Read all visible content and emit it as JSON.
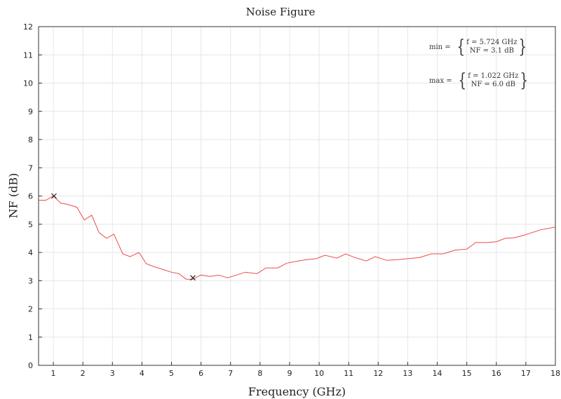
{
  "chart_data": {
    "type": "line",
    "title": "Noise Figure",
    "xlabel": "Frequency (GHz)",
    "ylabel": "NF (dB)",
    "xlim": [
      0.5,
      18
    ],
    "ylim": [
      0,
      12
    ],
    "xticks": [
      1,
      2,
      3,
      4,
      5,
      6,
      7,
      8,
      9,
      10,
      11,
      12,
      13,
      14,
      15,
      16,
      17,
      18
    ],
    "yticks": [
      0,
      1,
      2,
      3,
      4,
      5,
      6,
      7,
      8,
      9,
      10,
      11,
      12
    ],
    "grid": true,
    "series": [
      {
        "color": "#ef4a4a",
        "x": [
          0.5,
          0.75,
          1.0,
          1.25,
          1.5,
          1.8,
          2.05,
          2.3,
          2.55,
          2.8,
          3.05,
          3.35,
          3.6,
          3.9,
          4.15,
          4.4,
          4.7,
          5.0,
          5.25,
          5.5,
          5.72,
          6.0,
          6.3,
          6.6,
          6.9,
          7.2,
          7.5,
          7.9,
          8.2,
          8.6,
          8.9,
          9.3,
          9.6,
          9.9,
          10.2,
          10.6,
          10.9,
          11.2,
          11.6,
          11.9,
          12.3,
          12.7,
          13.0,
          13.4,
          13.8,
          14.2,
          14.6,
          15.0,
          15.3,
          15.7,
          16.0,
          16.3,
          16.6,
          16.9,
          17.2,
          17.5,
          18.0
        ],
        "y": [
          5.85,
          5.85,
          6.0,
          5.75,
          5.7,
          5.6,
          5.15,
          5.32,
          4.7,
          4.5,
          4.65,
          3.95,
          3.85,
          4.0,
          3.6,
          3.5,
          3.4,
          3.3,
          3.25,
          3.05,
          3.05,
          3.2,
          3.15,
          3.2,
          3.1,
          3.2,
          3.3,
          3.25,
          3.45,
          3.45,
          3.62,
          3.7,
          3.75,
          3.78,
          3.9,
          3.8,
          3.95,
          3.82,
          3.7,
          3.85,
          3.72,
          3.75,
          3.78,
          3.82,
          3.95,
          3.95,
          4.08,
          4.12,
          4.35,
          4.35,
          4.38,
          4.5,
          4.52,
          4.6,
          4.7,
          4.8,
          4.9
        ]
      }
    ],
    "markers": [
      {
        "x": 1.022,
        "y": 6.0,
        "symbol": "x"
      },
      {
        "x": 5.724,
        "y": 3.1,
        "symbol": "x"
      }
    ],
    "annotations": [
      {
        "label": "min =",
        "f": "f = 5.724 GHz",
        "nf": "NF = 3.1 dB"
      },
      {
        "label": "max =",
        "f": "f = 1.022 GHz",
        "nf": "NF = 6.0 dB"
      }
    ]
  }
}
